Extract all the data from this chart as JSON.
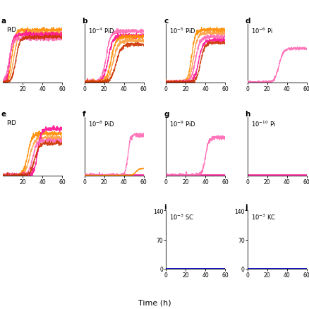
{
  "panels": [
    {
      "label": "a",
      "col": 0,
      "row": 0,
      "title_text": "PiD",
      "title_exp": null,
      "xrange": [
        0,
        60
      ],
      "yrange": [
        0,
        1
      ],
      "xticks": [
        20,
        40,
        60
      ],
      "yticks": [],
      "show_left_spine": false,
      "clip_left": true,
      "curves": [
        {
          "color": "#FF8C00",
          "x0": 9,
          "k": 0.55,
          "ymax": 0.9,
          "noise": 0.018
        },
        {
          "color": "#FFA040",
          "x0": 11,
          "k": 0.5,
          "ymax": 0.85,
          "noise": 0.015
        },
        {
          "color": "#FF1493",
          "x0": 7,
          "k": 0.65,
          "ymax": 0.82,
          "noise": 0.02
        },
        {
          "color": "#FF69B4",
          "x0": 6,
          "k": 0.55,
          "ymax": 0.75,
          "noise": 0.018
        },
        {
          "color": "#CC3300",
          "x0": 13,
          "k": 0.5,
          "ymax": 0.78,
          "noise": 0.015
        }
      ]
    },
    {
      "label": "b",
      "col": 1,
      "row": 0,
      "title_text": "PiD",
      "title_exp": -4,
      "xrange": [
        0,
        60
      ],
      "yrange": [
        0,
        1
      ],
      "xticks": [
        0,
        20,
        40,
        60
      ],
      "yticks": [],
      "show_left_spine": true,
      "clip_left": false,
      "curves": [
        {
          "color": "#FF69B4",
          "x0": 22,
          "k": 0.45,
          "ymax": 0.88,
          "noise": 0.02
        },
        {
          "color": "#FF1493",
          "x0": 24,
          "k": 0.42,
          "ymax": 0.8,
          "noise": 0.018
        },
        {
          "color": "#FF8C00",
          "x0": 27,
          "k": 0.42,
          "ymax": 0.78,
          "noise": 0.018
        },
        {
          "color": "#FFA040",
          "x0": 29,
          "k": 0.38,
          "ymax": 0.72,
          "noise": 0.016
        },
        {
          "color": "#CC3300",
          "x0": 32,
          "k": 0.38,
          "ymax": 0.65,
          "noise": 0.015
        }
      ]
    },
    {
      "label": "c",
      "col": 2,
      "row": 0,
      "title_text": "PiD",
      "title_exp": -5,
      "xrange": [
        0,
        60
      ],
      "yrange": [
        0,
        1
      ],
      "xticks": [
        0,
        20,
        40,
        60
      ],
      "yticks": [],
      "show_left_spine": true,
      "clip_left": false,
      "curves": [
        {
          "color": "#FF8C00",
          "x0": 26,
          "k": 0.55,
          "ymax": 0.9,
          "noise": 0.018
        },
        {
          "color": "#FFA040",
          "x0": 28,
          "k": 0.5,
          "ymax": 0.85,
          "noise": 0.016
        },
        {
          "color": "#FF69B4",
          "x0": 30,
          "k": 0.45,
          "ymax": 0.78,
          "noise": 0.018
        },
        {
          "color": "#FF1493",
          "x0": 33,
          "k": 0.45,
          "ymax": 0.72,
          "noise": 0.016
        },
        {
          "color": "#CC3300",
          "x0": 35,
          "k": 0.48,
          "ymax": 0.68,
          "noise": 0.014
        }
      ]
    },
    {
      "label": "d",
      "col": 3,
      "row": 0,
      "title_text": "Pi",
      "title_exp": -6,
      "xrange": [
        0,
        60
      ],
      "yrange": [
        0,
        1
      ],
      "xticks": [
        0,
        20,
        40,
        60
      ],
      "yticks": [],
      "show_left_spine": true,
      "clip_left": false,
      "curves": [
        {
          "color": "#FF69B4",
          "x0": 32,
          "k": 0.45,
          "ymax": 0.58,
          "noise": 0.012
        }
      ]
    },
    {
      "label": "e",
      "col": 0,
      "row": 1,
      "title_text": "PiD",
      "title_exp": null,
      "xrange": [
        0,
        60
      ],
      "yrange": [
        0,
        1
      ],
      "xticks": [
        20,
        40,
        60
      ],
      "yticks": [],
      "show_left_spine": false,
      "clip_left": true,
      "curves": [
        {
          "color": "#FF8C00",
          "x0": 25,
          "k": 0.45,
          "ymax": 0.72,
          "noise": 0.018
        },
        {
          "color": "#FFA040",
          "x0": 27,
          "k": 0.42,
          "ymax": 0.65,
          "noise": 0.016
        },
        {
          "color": "#FF1493",
          "x0": 35,
          "k": 0.55,
          "ymax": 0.8,
          "noise": 0.025
        },
        {
          "color": "#FF69B4",
          "x0": 30,
          "k": 0.48,
          "ymax": 0.6,
          "noise": 0.018
        },
        {
          "color": "#CC3300",
          "x0": 32,
          "k": 0.45,
          "ymax": 0.55,
          "noise": 0.016
        }
      ]
    },
    {
      "label": "f",
      "col": 1,
      "row": 1,
      "title_text": "PiD",
      "title_exp": -8,
      "xrange": [
        0,
        60
      ],
      "yrange": [
        0,
        1
      ],
      "xticks": [
        0,
        20,
        40,
        60
      ],
      "yticks": [],
      "show_left_spine": true,
      "clip_left": false,
      "curves": [
        {
          "color": "#FF69B4",
          "x0": 44,
          "k": 0.8,
          "ymax": 0.7,
          "noise": 0.02
        },
        {
          "color": "#FF8C00",
          "x0": 52,
          "k": 0.6,
          "ymax": 0.12,
          "noise": 0.005
        }
      ]
    },
    {
      "label": "g",
      "col": 2,
      "row": 1,
      "title_text": "PiD",
      "title_exp": -9,
      "xrange": [
        0,
        60
      ],
      "yrange": [
        0,
        1
      ],
      "xticks": [
        0,
        20,
        40,
        60
      ],
      "yticks": [],
      "show_left_spine": true,
      "clip_left": false,
      "curves": [
        {
          "color": "#FF69B4",
          "x0": 40,
          "k": 0.6,
          "ymax": 0.65,
          "noise": 0.018
        }
      ]
    },
    {
      "label": "h",
      "col": 3,
      "row": 1,
      "title_text": "Pi",
      "title_exp": -10,
      "xrange": [
        0,
        60
      ],
      "yrange": [
        0,
        1
      ],
      "xticks": [
        0,
        20,
        40,
        60
      ],
      "yticks": [],
      "show_left_spine": true,
      "clip_left": false,
      "curves": []
    },
    {
      "label": "i",
      "col": 2,
      "row": 2,
      "title_text": "SC",
      "title_exp": -3,
      "xrange": [
        0,
        60
      ],
      "yrange": [
        0,
        140
      ],
      "xticks": [
        0,
        20,
        40,
        60
      ],
      "yticks": [
        0,
        70,
        140
      ],
      "show_left_spine": true,
      "clip_left": false,
      "curves": [
        {
          "color": "#0000CD",
          "x0": null,
          "k": null,
          "ymax": 0,
          "noise": 0
        }
      ]
    },
    {
      "label": "j",
      "col": 3,
      "row": 2,
      "title_text": "KC",
      "title_exp": -3,
      "xrange": [
        0,
        60
      ],
      "yrange": [
        0,
        140
      ],
      "xticks": [
        0,
        20,
        40,
        60
      ],
      "yticks": [
        0,
        70,
        140
      ],
      "show_left_spine": true,
      "clip_left": false,
      "curves": [
        {
          "color": "#0000CD",
          "x0": null,
          "k": null,
          "ymax": 0,
          "noise": 0
        }
      ]
    }
  ],
  "xlabel": "Time (h)",
  "magenta_baseline_panels": [
    "f",
    "g",
    "h"
  ],
  "magenta_baseline_color": "#FF1493"
}
